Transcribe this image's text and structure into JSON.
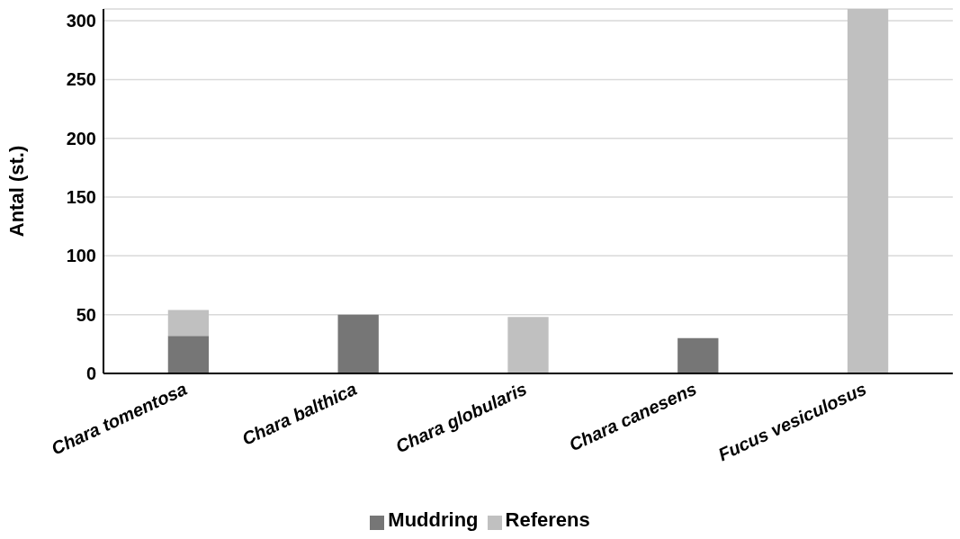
{
  "chart_data": {
    "type": "bar",
    "stacked": true,
    "ylabel": "Antal (st.)",
    "categories": [
      "Chara tomentosa",
      "Chara balthica",
      "Chara globularis",
      "Chara canesens",
      "Fucus vesiculosus"
    ],
    "series": [
      {
        "name": "Muddring",
        "color": "#767676",
        "values": [
          32,
          50,
          null,
          30,
          null
        ]
      },
      {
        "name": "Referens",
        "color": "#c0c0c0",
        "values": [
          22,
          null,
          48,
          null,
          310
        ]
      }
    ],
    "ylim": [
      0,
      310
    ],
    "yticks": [
      0,
      50,
      100,
      150,
      200,
      250,
      300
    ],
    "grid": "y",
    "legend": "bottom"
  }
}
